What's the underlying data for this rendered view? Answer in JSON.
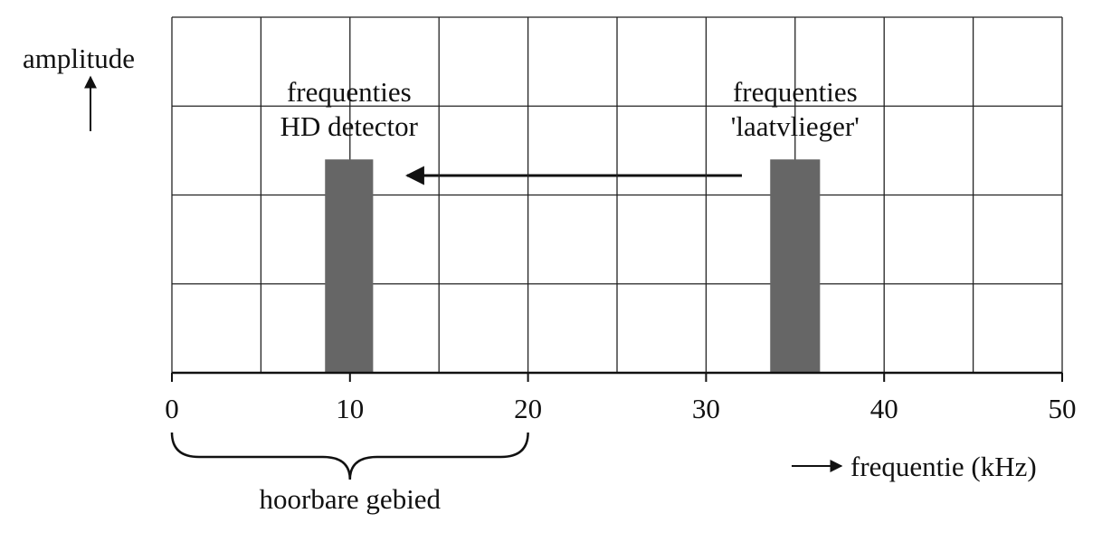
{
  "chart_data": {
    "type": "bar",
    "y_label": "amplitude",
    "x_label": "frequentie (kHz)",
    "xlim": [
      0,
      50
    ],
    "xticks": [
      0,
      10,
      20,
      30,
      40,
      50
    ],
    "ylim": [
      0,
      4
    ],
    "grid": true,
    "color": "#666666",
    "bars": [
      {
        "x0": 8.6,
        "x1": 11.3,
        "value": 2.4,
        "label": [
          "frequenties",
          "HD detector"
        ]
      },
      {
        "x0": 33.6,
        "x1": 36.4,
        "value": 2.4,
        "label": [
          "frequenties",
          "'laatvlieger'"
        ]
      }
    ],
    "brace": {
      "x0": 0,
      "x1": 20,
      "label": "hoorbare gebied"
    }
  }
}
